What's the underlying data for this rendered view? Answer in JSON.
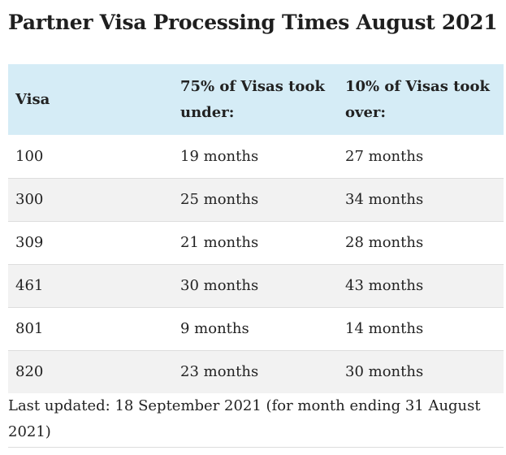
{
  "title": "Partner Visa Processing Times August 2021",
  "table": {
    "headers": {
      "visa": "Visa",
      "col2": "75% of Visas took under:",
      "col3": "10% of Visas took over:"
    },
    "rows": [
      {
        "visa": "100",
        "under": "19 months",
        "over": "27 months"
      },
      {
        "visa": "300",
        "under": "25 months",
        "over": "34 months"
      },
      {
        "visa": "309",
        "under": "21 months",
        "over": "28 months"
      },
      {
        "visa": "461",
        "under": "30 months",
        "over": "43 months"
      },
      {
        "visa": "801",
        "under": "9 months",
        "over": "14 months"
      },
      {
        "visa": "820",
        "under": "23 months",
        "over": "30 months"
      }
    ]
  },
  "footnote": "Last updated: 18 September 2021 (for month ending 31 August 2021)",
  "colors": {
    "header_bg": "#d5ecf6",
    "stripe_bg": "#f2f2f2"
  }
}
